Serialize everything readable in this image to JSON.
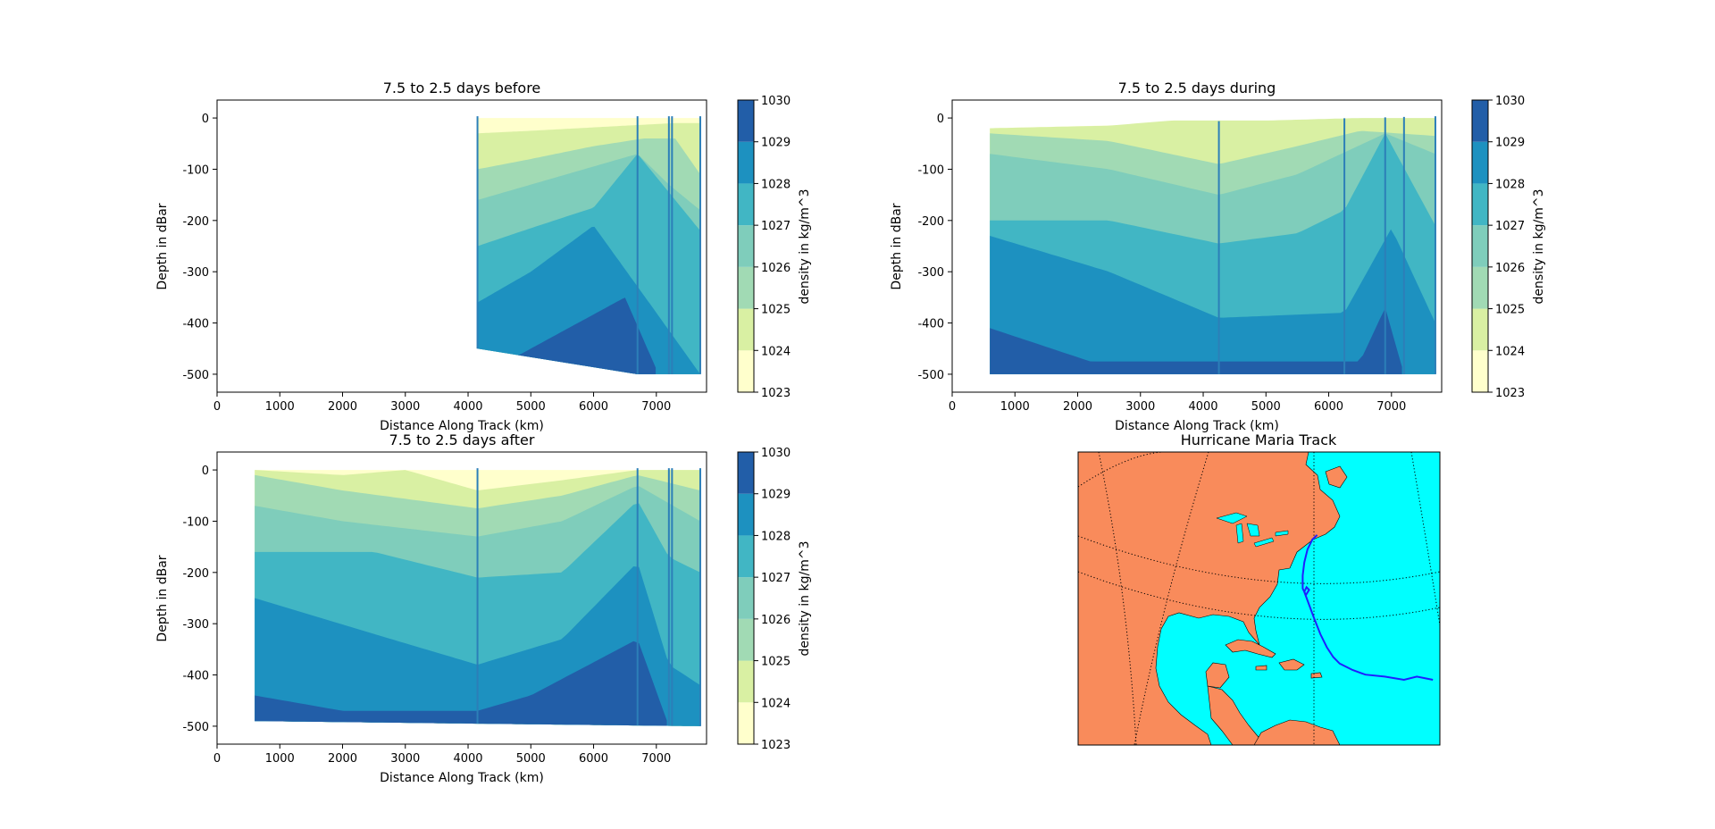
{
  "palette": [
    "#ffffcc",
    "#d9f0a3",
    "#a1dab4",
    "#7fcdbb",
    "#41b6c4",
    "#1d91c0",
    "#225ea8",
    "#253494"
  ],
  "land_color": "#f98b5b",
  "ocean_color": "#00ffff",
  "track_color": "#1f1fff",
  "chart_data": [
    {
      "type": "contour",
      "title": "7.5 to 2.5 days before",
      "xlabel": "Distance Along Track (km)",
      "ylabel": "Depth in dBar",
      "xlim": [
        0,
        7800
      ],
      "ylim": [
        -535,
        35
      ],
      "xticks": [
        0,
        1000,
        2000,
        3000,
        4000,
        5000,
        6000,
        7000
      ],
      "yticks": [
        0,
        -100,
        -200,
        -300,
        -400,
        -500
      ],
      "data_extent_km": [
        4150,
        7700
      ],
      "profile_stations_km": [
        4150,
        6700,
        7200,
        7250,
        7700
      ],
      "density_boundaries": [
        {
          "range": "1023-1024",
          "depth_at_km": [
            [
              4150,
              0
            ],
            [
              7700,
              0
            ]
          ]
        },
        {
          "range": "1024-1025",
          "depth_at_km": [
            [
              4150,
              -30
            ],
            [
              5000,
              -25
            ],
            [
              6500,
              -15
            ],
            [
              7300,
              -10
            ],
            [
              7700,
              -10
            ]
          ]
        },
        {
          "range": "1025-1026",
          "depth_at_km": [
            [
              4150,
              -100
            ],
            [
              5000,
              -80
            ],
            [
              6000,
              -55
            ],
            [
              6800,
              -40
            ],
            [
              7300,
              -40
            ],
            [
              7700,
              -110
            ]
          ]
        },
        {
          "range": "1026-1027",
          "depth_at_km": [
            [
              4150,
              -160
            ],
            [
              5000,
              -130
            ],
            [
              6700,
              -70
            ],
            [
              7200,
              -130
            ],
            [
              7700,
              -180
            ]
          ]
        },
        {
          "range": "1027-1028",
          "depth_at_km": [
            [
              4150,
              -250
            ],
            [
              5000,
              -215
            ],
            [
              6000,
              -175
            ],
            [
              6700,
              -70
            ],
            [
              7700,
              -220
            ]
          ]
        },
        {
          "range": "1028-1029",
          "depth_at_km": [
            [
              4150,
              -360
            ],
            [
              5000,
              -300
            ],
            [
              6000,
              -210
            ],
            [
              7000,
              -380
            ],
            [
              7700,
              -500
            ]
          ]
        },
        {
          "range": "1029-1030",
          "depth_at_km": [
            [
              4700,
              -470
            ],
            [
              6500,
              -350
            ],
            [
              7000,
              -490
            ]
          ]
        }
      ],
      "bottom_depth_at_km": [
        [
          4150,
          -450
        ],
        [
          6700,
          -500
        ],
        [
          7700,
          -500
        ]
      ],
      "colorbar": {
        "label": "density in kg/m^3",
        "ticks": [
          1023,
          1024,
          1025,
          1026,
          1027,
          1028,
          1029,
          1030
        ]
      }
    },
    {
      "type": "contour",
      "title": "7.5 to 2.5 days during",
      "xlabel": "Distance Along Track (km)",
      "ylabel": "Depth in dBar",
      "xlim": [
        0,
        7800
      ],
      "ylim": [
        -535,
        35
      ],
      "xticks": [
        0,
        1000,
        2000,
        3000,
        4000,
        5000,
        6000,
        7000
      ],
      "yticks": [
        0,
        -100,
        -200,
        -300,
        -400,
        -500
      ],
      "data_extent_km": [
        600,
        7700
      ],
      "profile_stations_km": [
        4250,
        6250,
        6900,
        7200,
        7700
      ],
      "density_boundaries": [
        {
          "range": "1023-1024",
          "depth_at_km": [
            [
              600,
              -20
            ],
            [
              7700,
              0
            ]
          ]
        },
        {
          "range": "1024-1025",
          "depth_at_km": [
            [
              600,
              -20
            ],
            [
              2500,
              -15
            ],
            [
              3500,
              -5
            ],
            [
              5000,
              -5
            ],
            [
              6500,
              0
            ],
            [
              7700,
              0
            ]
          ]
        },
        {
          "range": "1025-1026",
          "depth_at_km": [
            [
              600,
              -30
            ],
            [
              2500,
              -45
            ],
            [
              4250,
              -90
            ],
            [
              5500,
              -55
            ],
            [
              6500,
              -25
            ],
            [
              7700,
              -35
            ]
          ]
        },
        {
          "range": "1026-1027",
          "depth_at_km": [
            [
              600,
              -70
            ],
            [
              2500,
              -100
            ],
            [
              4250,
              -150
            ],
            [
              5500,
              -110
            ],
            [
              6900,
              -30
            ],
            [
              7700,
              -70
            ]
          ]
        },
        {
          "range": "1027-1028",
          "depth_at_km": [
            [
              600,
              -200
            ],
            [
              2500,
              -200
            ],
            [
              4250,
              -245
            ],
            [
              5500,
              -225
            ],
            [
              6250,
              -180
            ],
            [
              6900,
              -30
            ],
            [
              7700,
              -210
            ]
          ]
        },
        {
          "range": "1028-1029",
          "depth_at_km": [
            [
              600,
              -230
            ],
            [
              2500,
              -300
            ],
            [
              4250,
              -390
            ],
            [
              6250,
              -380
            ],
            [
              7000,
              -215
            ],
            [
              7700,
              -400
            ]
          ]
        },
        {
          "range": "1029-1030",
          "depth_at_km": [
            [
              600,
              -410
            ],
            [
              2200,
              -475
            ],
            [
              6500,
              -475
            ],
            [
              6900,
              -370
            ],
            [
              7200,
              -500
            ]
          ]
        }
      ],
      "bottom_depth_at_km": [
        [
          600,
          -500
        ],
        [
          7700,
          -500
        ]
      ],
      "colorbar": {
        "label": "density in kg/m^3",
        "ticks": [
          1023,
          1024,
          1025,
          1026,
          1027,
          1028,
          1029,
          1030
        ]
      }
    },
    {
      "type": "contour",
      "title": "7.5 to 2.5 days after",
      "xlabel": "Distance Along Track (km)",
      "ylabel": "Depth in dBar",
      "xlim": [
        0,
        7800
      ],
      "ylim": [
        -535,
        35
      ],
      "xticks": [
        0,
        1000,
        2000,
        3000,
        4000,
        5000,
        6000,
        7000
      ],
      "yticks": [
        0,
        -100,
        -200,
        -300,
        -400,
        -500
      ],
      "data_extent_km": [
        600,
        7700
      ],
      "profile_stations_km": [
        4150,
        6700,
        7200,
        7250,
        7700
      ],
      "density_boundaries": [
        {
          "range": "1023-1024",
          "depth_at_km": [
            [
              600,
              0
            ],
            [
              7700,
              0
            ]
          ]
        },
        {
          "range": "1024-1025",
          "depth_at_km": [
            [
              600,
              0
            ],
            [
              2000,
              -10
            ],
            [
              3000,
              0
            ],
            [
              4150,
              -40
            ],
            [
              5500,
              -20
            ],
            [
              6700,
              0
            ],
            [
              7700,
              0
            ]
          ]
        },
        {
          "range": "1025-1026",
          "depth_at_km": [
            [
              600,
              -10
            ],
            [
              2000,
              -40
            ],
            [
              4150,
              -75
            ],
            [
              5500,
              -50
            ],
            [
              6700,
              -10
            ],
            [
              7700,
              -40
            ]
          ]
        },
        {
          "range": "1026-1027",
          "depth_at_km": [
            [
              600,
              -70
            ],
            [
              2000,
              -100
            ],
            [
              4150,
              -130
            ],
            [
              5500,
              -100
            ],
            [
              6700,
              -30
            ],
            [
              7700,
              -100
            ]
          ]
        },
        {
          "range": "1027-1028",
          "depth_at_km": [
            [
              600,
              -160
            ],
            [
              2500,
              -160
            ],
            [
              4150,
              -210
            ],
            [
              5500,
              -200
            ],
            [
              6700,
              -60
            ],
            [
              7200,
              -170
            ],
            [
              7700,
              -200
            ]
          ]
        },
        {
          "range": "1028-1029",
          "depth_at_km": [
            [
              600,
              -250
            ],
            [
              2500,
              -320
            ],
            [
              4150,
              -380
            ],
            [
              5500,
              -330
            ],
            [
              6700,
              -180
            ],
            [
              7200,
              -380
            ],
            [
              7700,
              -420
            ]
          ]
        },
        {
          "range": "1029-1030",
          "depth_at_km": [
            [
              600,
              -440
            ],
            [
              2000,
              -470
            ],
            [
              4150,
              -470
            ],
            [
              5000,
              -440
            ],
            [
              6700,
              -330
            ],
            [
              7200,
              -500
            ]
          ]
        }
      ],
      "bottom_depth_at_km": [
        [
          600,
          -490
        ],
        [
          7700,
          -500
        ]
      ],
      "colorbar": {
        "label": "density in kg/m^3",
        "ticks": [
          1023,
          1024,
          1025,
          1026,
          1027,
          1028,
          1029,
          1030
        ]
      }
    },
    {
      "type": "map",
      "title": "Hurricane Maria Track",
      "track_lonlat": [
        [
          -33,
          15
        ],
        [
          -38,
          15.5
        ],
        [
          -42,
          15
        ],
        [
          -48,
          15.5
        ],
        [
          -54,
          15.8
        ],
        [
          -58,
          16.5
        ],
        [
          -62,
          17.5
        ],
        [
          -64,
          18.5
        ],
        [
          -66,
          20
        ],
        [
          -68,
          22
        ],
        [
          -70,
          24.5
        ],
        [
          -71.5,
          26.5
        ],
        [
          -73,
          28.5
        ],
        [
          -72.3,
          29.2
        ],
        [
          -71.5,
          28.8
        ],
        [
          -72.5,
          28
        ],
        [
          -73.5,
          29
        ],
        [
          -73.5,
          31
        ],
        [
          -73,
          33
        ],
        [
          -72,
          35
        ],
        [
          -70.5,
          36.5
        ],
        [
          -69,
          37.2
        ]
      ]
    }
  ]
}
